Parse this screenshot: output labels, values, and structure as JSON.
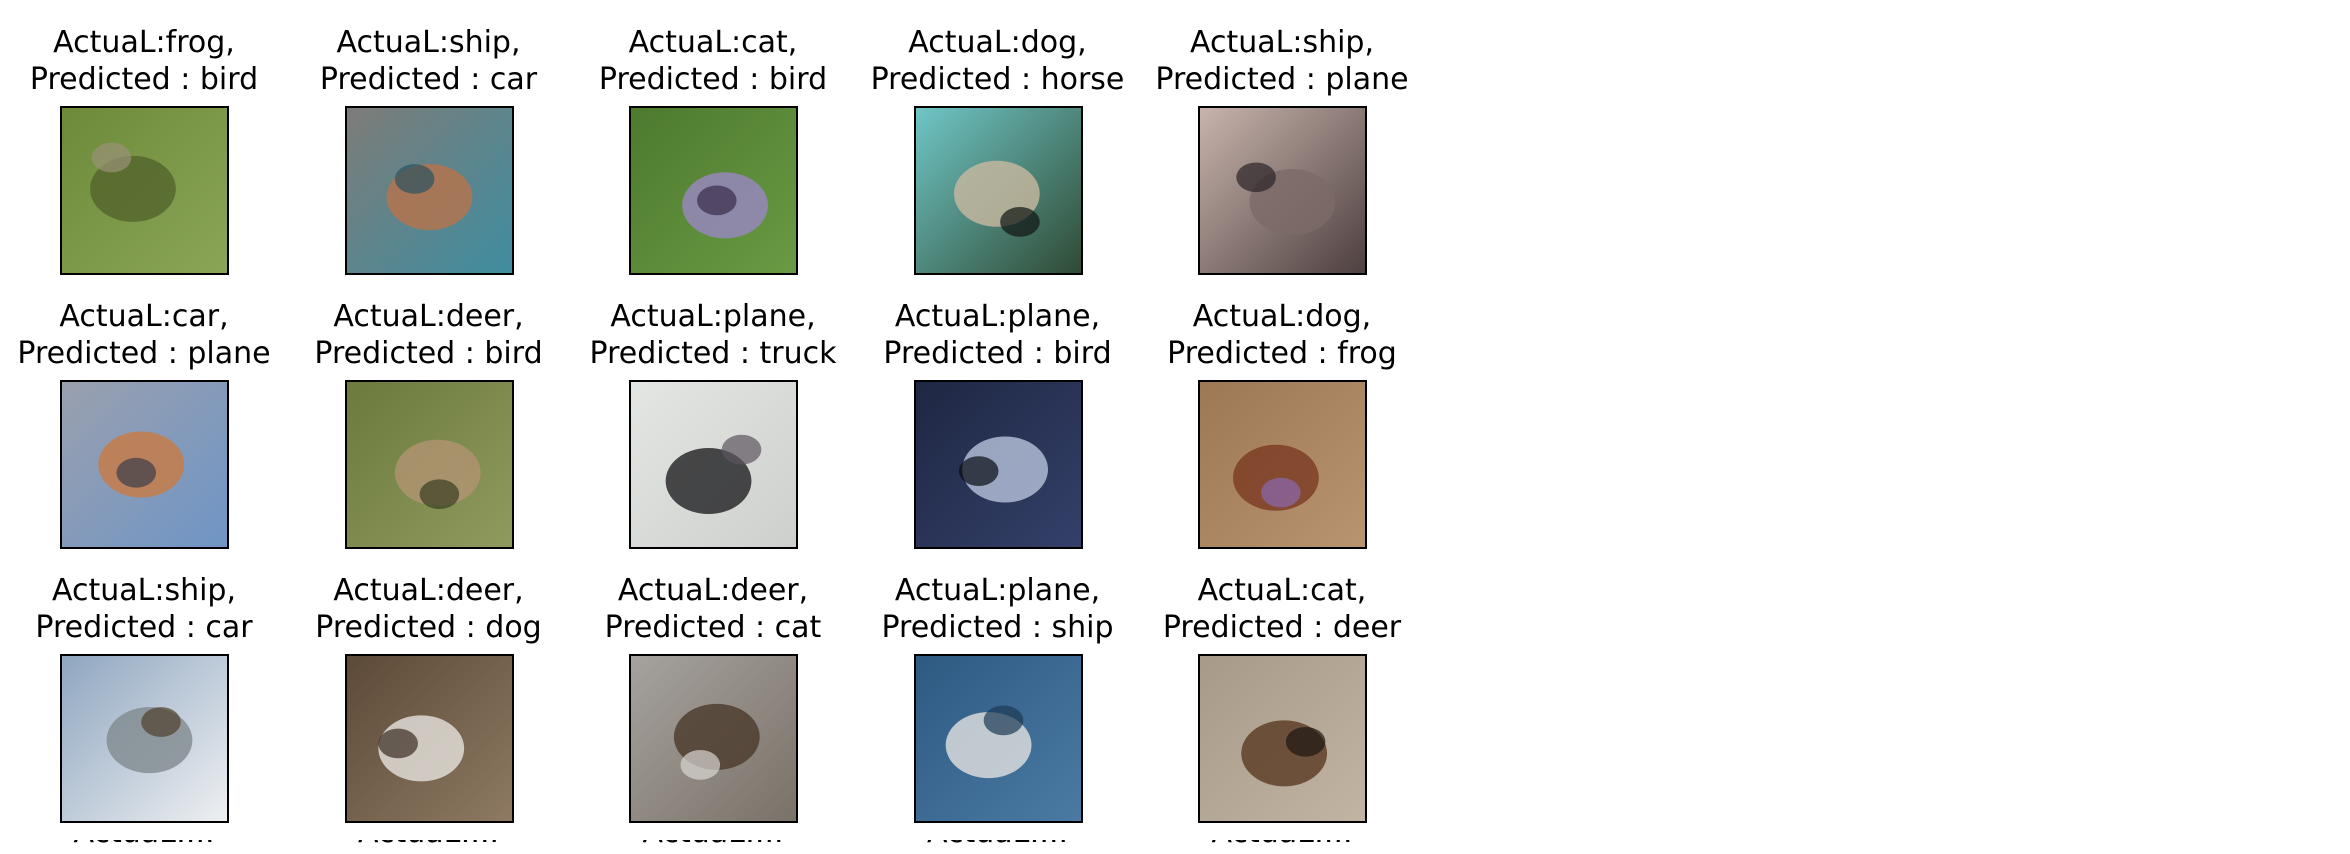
{
  "figure": {
    "panels": [
      {
        "actual_line": "ActuaL:frog,",
        "predicted_line": "Predicted : bird",
        "image": "frog on grass",
        "colors": [
          "#6d8a3a",
          "#8aa556",
          "#54642c",
          "#9a9278"
        ]
      },
      {
        "actual_line": "ActuaL:ship,",
        "predicted_line": "Predicted : car",
        "image": "boat with teal hull from above",
        "colors": [
          "#7d7c78",
          "#3f8da0",
          "#b8734a",
          "#2c5361"
        ]
      },
      {
        "actual_line": "ActuaL:cat,",
        "predicted_line": "Predicted : bird",
        "image": "cat lying on grass",
        "colors": [
          "#4d7a2e",
          "#6a9a44",
          "#9a87c4",
          "#3b2c4a"
        ]
      },
      {
        "actual_line": "ActuaL:dog,",
        "predicted_line": "Predicted : horse",
        "image": "dog by trees",
        "colors": [
          "#6fc6c6",
          "#2f4a34",
          "#c9b9a0",
          "#0f1512"
        ]
      },
      {
        "actual_line": "ActuaL:ship,",
        "predicted_line": "Predicted : plane",
        "image": "ship at sunset",
        "colors": [
          "#c8b4ac",
          "#4e4040",
          "#7c6a66",
          "#2b2426"
        ]
      },
      {
        "actual_line": "ActuaL:car,",
        "predicted_line": "Predicted : plane",
        "image": "blue car with orange stripe",
        "colors": [
          "#9aa0ae",
          "#6f95c6",
          "#c97a42",
          "#3a3e4c"
        ]
      },
      {
        "actual_line": "ActuaL:deer,",
        "predicted_line": "Predicted : bird",
        "image": "deer in grass",
        "colors": [
          "#6c7a3e",
          "#8f9a5e",
          "#b29472",
          "#3b3f24"
        ]
      },
      {
        "actual_line": "ActuaL:plane,",
        "predicted_line": "Predicted : truck",
        "image": "stealth jet over white sky",
        "colors": [
          "#e3e6e2",
          "#cdd0cc",
          "#1f1f22",
          "#5c5560"
        ]
      },
      {
        "actual_line": "ActuaL:plane,",
        "predicted_line": "Predicted : bird",
        "image": "stealth bomber in blue sky",
        "colors": [
          "#1e2742",
          "#34406a",
          "#b8c3dc",
          "#0a0d16"
        ]
      },
      {
        "actual_line": "ActuaL:dog,",
        "predicted_line": "Predicted : frog",
        "image": "brown dog lying on ground",
        "colors": [
          "#9c7854",
          "#b89472",
          "#7a3a22",
          "#8a6ab0"
        ]
      },
      {
        "actual_line": "ActuaL:ship,",
        "predicted_line": "Predicted : car",
        "image": "white boat",
        "colors": [
          "#8fa6c0",
          "#eef0f2",
          "#7f8a8f",
          "#50402c"
        ]
      },
      {
        "actual_line": "ActuaL:deer,",
        "predicted_line": "Predicted : dog",
        "image": "deer near white rocks",
        "colors": [
          "#5c4a38",
          "#8e7a62",
          "#e6e4de",
          "#3a2c22"
        ]
      },
      {
        "actual_line": "ActuaL:deer,",
        "predicted_line": "Predicted : cat",
        "image": "deer in snowy scene",
        "colors": [
          "#a6a29e",
          "#7a7268",
          "#4a3a2a",
          "#d8d6d2"
        ]
      },
      {
        "actual_line": "ActuaL:plane,",
        "predicted_line": "Predicted : ship",
        "image": "white jet over ocean",
        "colors": [
          "#2e5a82",
          "#4a7aa2",
          "#e2e2e0",
          "#1c3a56"
        ]
      },
      {
        "actual_line": "ActuaL:cat,",
        "predicted_line": "Predicted : deer",
        "image": "tortoiseshell cat lying on ground",
        "colors": [
          "#a89a88",
          "#c2b4a2",
          "#5a3a22",
          "#1c1612"
        ]
      }
    ],
    "cut_off_row": [
      {
        "actual_line": "ActuaL:...",
        "predicted_line": ""
      },
      {
        "actual_line": "ActuaL:...",
        "predicted_line": ""
      },
      {
        "actual_line": "ActuaL:...",
        "predicted_line": ""
      },
      {
        "actual_line": "ActuaL:...",
        "predicted_line": ""
      },
      {
        "actual_line": "ActuaL:...",
        "predicted_line": ""
      }
    ]
  }
}
